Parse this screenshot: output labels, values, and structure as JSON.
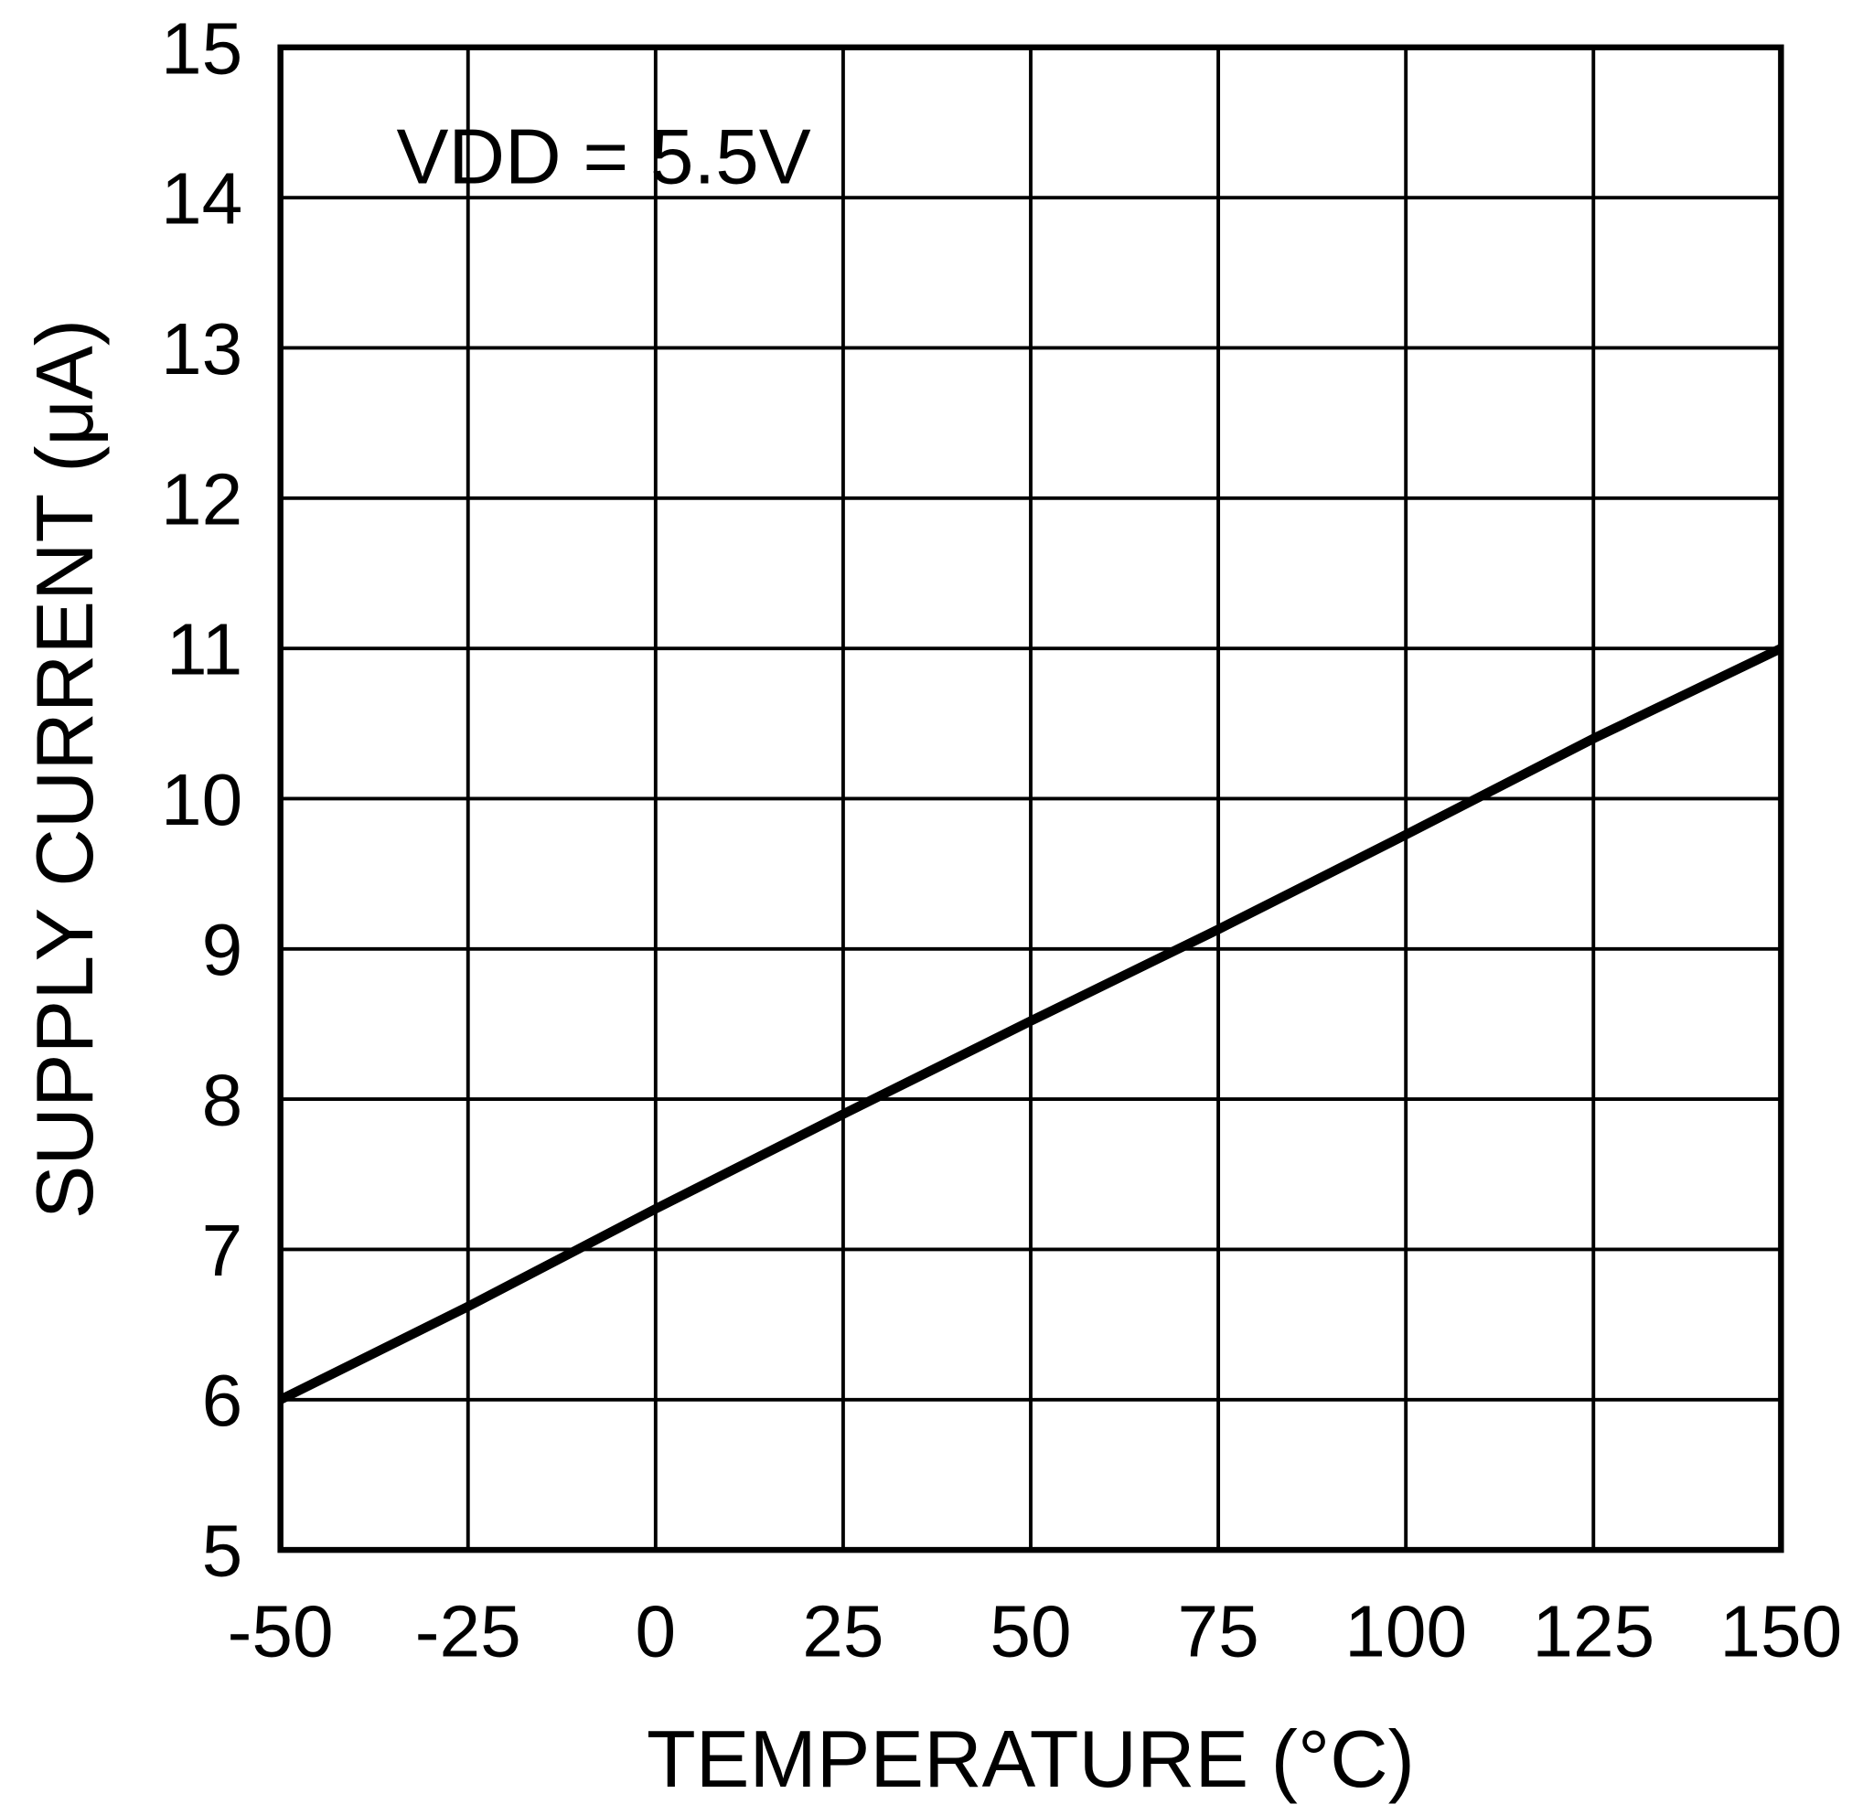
{
  "chart_data": {
    "type": "line",
    "title": "",
    "xlabel": "TEMPERATURE (°C)",
    "ylabel": "SUPPLY CURRENT (μA)",
    "xlim": [
      -50,
      150
    ],
    "ylim": [
      5,
      15
    ],
    "xticks": [
      -50,
      -25,
      0,
      25,
      50,
      75,
      100,
      125,
      150
    ],
    "yticks": [
      5,
      6,
      7,
      8,
      9,
      10,
      11,
      12,
      13,
      14,
      15
    ],
    "grid": true,
    "annotation": "VDD = 5.5V",
    "series": [
      {
        "x": [
          -50,
          -25,
          0,
          25,
          50,
          75,
          100,
          125,
          150
        ],
        "y": [
          6.0,
          6.62,
          7.27,
          7.9,
          8.52,
          9.13,
          9.76,
          10.4,
          11.0
        ],
        "color": "#000000"
      }
    ]
  }
}
